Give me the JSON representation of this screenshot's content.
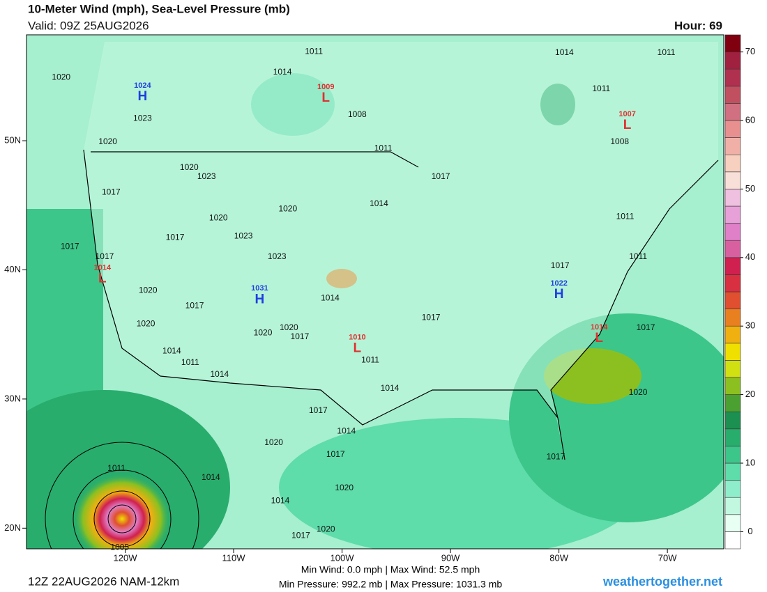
{
  "header": {
    "title": "10-Meter Wind (mph), Sea-Level Pressure (mb)",
    "valid": "Valid: 09Z 25AUG2026",
    "hour": "Hour: 69"
  },
  "map": {
    "lonlim": [
      -129.1,
      -64.8
    ],
    "latlim": [
      18.4,
      58.2
    ],
    "lonticks": [
      {
        "value": -120,
        "label": "120W"
      },
      {
        "value": -110,
        "label": "110W"
      },
      {
        "value": -100,
        "label": "100W"
      },
      {
        "value": -90,
        "label": "90W"
      },
      {
        "value": -80,
        "label": "80W"
      },
      {
        "value": -70,
        "label": "70W"
      }
    ],
    "latticks": [
      {
        "value": 20,
        "label": "20N"
      },
      {
        "value": 30,
        "label": "30N"
      },
      {
        "value": 40,
        "label": "40N"
      },
      {
        "value": 50,
        "label": "50N"
      }
    ],
    "centers": [
      {
        "type": "H",
        "value": 1024,
        "lon": -118.4,
        "lat": 53.5,
        "color": "#1f3fe0"
      },
      {
        "type": "L",
        "value": 1009,
        "lon": -101.5,
        "lat": 53.4,
        "color": "#e03030"
      },
      {
        "type": "L",
        "value": 1007,
        "lon": -73.7,
        "lat": 51.3,
        "color": "#e03030"
      },
      {
        "type": "L",
        "value": 1014,
        "lon": -122.1,
        "lat": 39.4,
        "color": "#e03030"
      },
      {
        "type": "H",
        "value": 1031,
        "lon": -107.6,
        "lat": 37.8,
        "color": "#1f3fe0"
      },
      {
        "type": "H",
        "value": 1022,
        "lon": -80.0,
        "lat": 38.2,
        "color": "#1f3fe0"
      },
      {
        "type": "L",
        "value": 1014,
        "lon": -76.3,
        "lat": 34.8,
        "color": "#e03030"
      },
      {
        "type": "L",
        "value": 1010,
        "lon": -98.6,
        "lat": 34.0,
        "color": "#e03030"
      }
    ],
    "isobar_labels": [
      {
        "value": 1020,
        "lon": -125.9,
        "lat": 54.9
      },
      {
        "value": 1023,
        "lon": -118.4,
        "lat": 51.7
      },
      {
        "value": 1020,
        "lon": -121.6,
        "lat": 49.9
      },
      {
        "value": 1020,
        "lon": -114.1,
        "lat": 47.9
      },
      {
        "value": 1023,
        "lon": -112.5,
        "lat": 47.2
      },
      {
        "value": 1017,
        "lon": -121.3,
        "lat": 46.0
      },
      {
        "value": 1020,
        "lon": -111.4,
        "lat": 44.0
      },
      {
        "value": 1023,
        "lon": -109.1,
        "lat": 42.6
      },
      {
        "value": 1020,
        "lon": -105.0,
        "lat": 44.7
      },
      {
        "value": 1017,
        "lon": -115.4,
        "lat": 42.5
      },
      {
        "value": 1017,
        "lon": -125.1,
        "lat": 41.8
      },
      {
        "value": 1017,
        "lon": -121.9,
        "lat": 41.0
      },
      {
        "value": 1023,
        "lon": -106.0,
        "lat": 41.0
      },
      {
        "value": 1020,
        "lon": -117.9,
        "lat": 38.4
      },
      {
        "value": 1017,
        "lon": -113.6,
        "lat": 37.2
      },
      {
        "value": 1014,
        "lon": -101.1,
        "lat": 37.8
      },
      {
        "value": 1020,
        "lon": -118.1,
        "lat": 35.8
      },
      {
        "value": 1020,
        "lon": -104.9,
        "lat": 35.5
      },
      {
        "value": 1020,
        "lon": -107.3,
        "lat": 35.1
      },
      {
        "value": 1017,
        "lon": -103.9,
        "lat": 34.8
      },
      {
        "value": 1014,
        "lon": -115.7,
        "lat": 33.7
      },
      {
        "value": 1011,
        "lon": -114.0,
        "lat": 32.8
      },
      {
        "value": 1014,
        "lon": -111.3,
        "lat": 31.9
      },
      {
        "value": 1011,
        "lon": -97.4,
        "lat": 33.0
      },
      {
        "value": 1014,
        "lon": -95.6,
        "lat": 30.8
      },
      {
        "value": 1017,
        "lon": -91.8,
        "lat": 36.3
      },
      {
        "value": 1017,
        "lon": -90.9,
        "lat": 47.2
      },
      {
        "value": 1014,
        "lon": -96.6,
        "lat": 45.1
      },
      {
        "value": 1011,
        "lon": -96.2,
        "lat": 49.4
      },
      {
        "value": 1011,
        "lon": -102.6,
        "lat": 56.9
      },
      {
        "value": 1014,
        "lon": -105.5,
        "lat": 55.3
      },
      {
        "value": 1008,
        "lon": -98.6,
        "lat": 52.0
      },
      {
        "value": 1014,
        "lon": -79.5,
        "lat": 56.8
      },
      {
        "value": 1011,
        "lon": -70.1,
        "lat": 56.8
      },
      {
        "value": 1011,
        "lon": -76.1,
        "lat": 54.0
      },
      {
        "value": 1008,
        "lon": -74.4,
        "lat": 49.9
      },
      {
        "value": 1011,
        "lon": -73.9,
        "lat": 44.1
      },
      {
        "value": 1011,
        "lon": -72.7,
        "lat": 41.0
      },
      {
        "value": 1017,
        "lon": -79.9,
        "lat": 40.3
      },
      {
        "value": 1017,
        "lon": -72.0,
        "lat": 35.5
      },
      {
        "value": 1020,
        "lon": -72.7,
        "lat": 30.5
      },
      {
        "value": 1017,
        "lon": -80.3,
        "lat": 25.5
      },
      {
        "value": 1017,
        "lon": -102.2,
        "lat": 29.1
      },
      {
        "value": 1014,
        "lon": -99.6,
        "lat": 27.5
      },
      {
        "value": 1020,
        "lon": -106.3,
        "lat": 26.6
      },
      {
        "value": 1017,
        "lon": -100.6,
        "lat": 25.7
      },
      {
        "value": 1014,
        "lon": -112.1,
        "lat": 23.9
      },
      {
        "value": 1020,
        "lon": -99.8,
        "lat": 23.1
      },
      {
        "value": 1014,
        "lon": -105.7,
        "lat": 22.1
      },
      {
        "value": 1020,
        "lon": -101.5,
        "lat": 19.9
      },
      {
        "value": 1017,
        "lon": -103.8,
        "lat": 19.4
      },
      {
        "value": 1011,
        "lon": -120.8,
        "lat": 24.6
      },
      {
        "value": 1005,
        "lon": -120.5,
        "lat": 18.5
      }
    ]
  },
  "colorbar": {
    "lim": [
      -2.5,
      72.5
    ],
    "ticks": [
      0,
      10,
      20,
      30,
      40,
      50,
      60,
      70
    ],
    "colors": [
      "#ffffff",
      "#e8fff4",
      "#c2f7e0",
      "#8eeecb",
      "#5edcaa",
      "#3cc68a",
      "#28ad6c",
      "#1c9050",
      "#4aa030",
      "#8cc020",
      "#d0e010",
      "#f0e000",
      "#f0b010",
      "#e88020",
      "#e05030",
      "#d83040",
      "#d02050",
      "#d860a0",
      "#e080c8",
      "#e8a0d8",
      "#f0c0e0",
      "#f8e0d8",
      "#f8d0c0",
      "#f0b0a8",
      "#e89090",
      "#d07080",
      "#c05060",
      "#b03050",
      "#a02040",
      "#800010"
    ]
  },
  "footer": {
    "run": "12Z 22AUG2026 NAM-12km",
    "wind": "Min Wind:   0.0 mph | Max Wind:  52.5 mph",
    "pressure": "Min Pressure: 992.2 mb | Max Pressure: 1031.3 mb",
    "site": "weathertogether.net"
  }
}
